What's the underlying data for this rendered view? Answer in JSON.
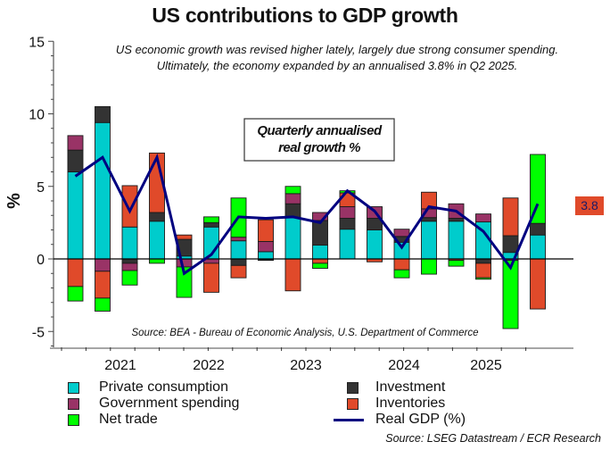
{
  "chart_data": {
    "type": "bar",
    "stacked": true,
    "title": "US contributions to GDP growth",
    "subtitle_lines": [
      "US economic growth was revised higher lately, largely due strong consumer spending.",
      "Ultimately, the economy expanded by an annualised 3.8% in Q2 2025."
    ],
    "annotation_box_lines": [
      "Quarterly annualised",
      "real growth %"
    ],
    "source_in_plot": "Source: BEA - Bureau of Economic Analysis, U.S. Department of Commerce",
    "xlabel": "",
    "ylabel": "%",
    "ylim": [
      -6,
      15
    ],
    "yticks": [
      -5,
      0,
      5,
      10,
      15
    ],
    "grid": false,
    "legend_position": "bottom",
    "year_labels": [
      "2021",
      "2022",
      "2023",
      "2024",
      "2025"
    ],
    "categories": [
      "Q1 2021",
      "Q2 2021",
      "Q3 2021",
      "Q4 2021",
      "Q1 2022",
      "Q2 2022",
      "Q3 2022",
      "Q4 2022",
      "Q1 2023",
      "Q2 2023",
      "Q3 2023",
      "Q4 2023",
      "Q1 2024",
      "Q2 2024",
      "Q3 2024",
      "Q4 2024",
      "Q1 2025",
      "Q2 2025"
    ],
    "series": [
      {
        "name": "Private consumption",
        "color": "#00CCCC",
        "values": [
          6.0,
          9.4,
          2.2,
          2.6,
          0.2,
          2.2,
          1.25,
          0.5,
          2.85,
          0.95,
          2.05,
          2.0,
          1.15,
          2.6,
          2.6,
          2.55,
          0.45,
          1.65
        ]
      },
      {
        "name": "Investment",
        "color": "#333333",
        "values": [
          1.5,
          1.1,
          -0.3,
          0.6,
          1.15,
          0.3,
          -0.45,
          -0.05,
          0.95,
          1.7,
          0.75,
          0.8,
          0.4,
          0.25,
          0.2,
          -0.3,
          1.15,
          0.8
        ]
      },
      {
        "name": "Government spending",
        "color": "#993366",
        "values": [
          1.0,
          -0.85,
          -0.5,
          0.0,
          -0.55,
          -0.3,
          0.25,
          0.7,
          0.7,
          0.55,
          0.8,
          0.8,
          0.5,
          0.6,
          1.0,
          0.55,
          -0.1,
          0.0
        ]
      },
      {
        "name": "Inventories",
        "color": "#E04A2A",
        "values": [
          -1.9,
          -1.85,
          2.85,
          4.1,
          0.3,
          -2.0,
          -0.85,
          1.5,
          -2.2,
          -0.3,
          0.95,
          -0.2,
          -0.75,
          1.15,
          -0.1,
          -1.0,
          2.6,
          -3.45
        ]
      },
      {
        "name": "Net trade",
        "color": "#00FF00",
        "values": [
          -1.0,
          -0.9,
          -1.0,
          -0.3,
          -2.1,
          0.4,
          2.7,
          -0.05,
          0.5,
          -0.35,
          0.15,
          0.0,
          -0.55,
          -1.05,
          -0.4,
          -0.1,
          -4.7,
          4.75
        ]
      }
    ],
    "line_series": {
      "name": "Real GDP (%)",
      "color": "#000080",
      "values": [
        5.7,
        7.0,
        3.3,
        7.0,
        -1.0,
        0.3,
        2.9,
        2.8,
        2.9,
        2.5,
        4.7,
        3.3,
        0.8,
        3.6,
        3.3,
        1.9,
        -0.6,
        3.8
      ]
    },
    "last_value_badge": "3.8"
  },
  "legend": [
    {
      "label": "Private consumption",
      "kind": "swatch",
      "color": "#00CCCC"
    },
    {
      "label": "Government spending",
      "kind": "swatch",
      "color": "#993366"
    },
    {
      "label": "Net trade",
      "kind": "swatch",
      "color": "#00FF00"
    },
    {
      "label": "Investment",
      "kind": "swatch",
      "color": "#333333"
    },
    {
      "label": "Inventories",
      "kind": "swatch",
      "color": "#E04A2A"
    },
    {
      "label": "Real GDP (%)",
      "kind": "line",
      "color": "#000080"
    }
  ],
  "footer_source": "Source: LSEG Datastream / ECR Research"
}
